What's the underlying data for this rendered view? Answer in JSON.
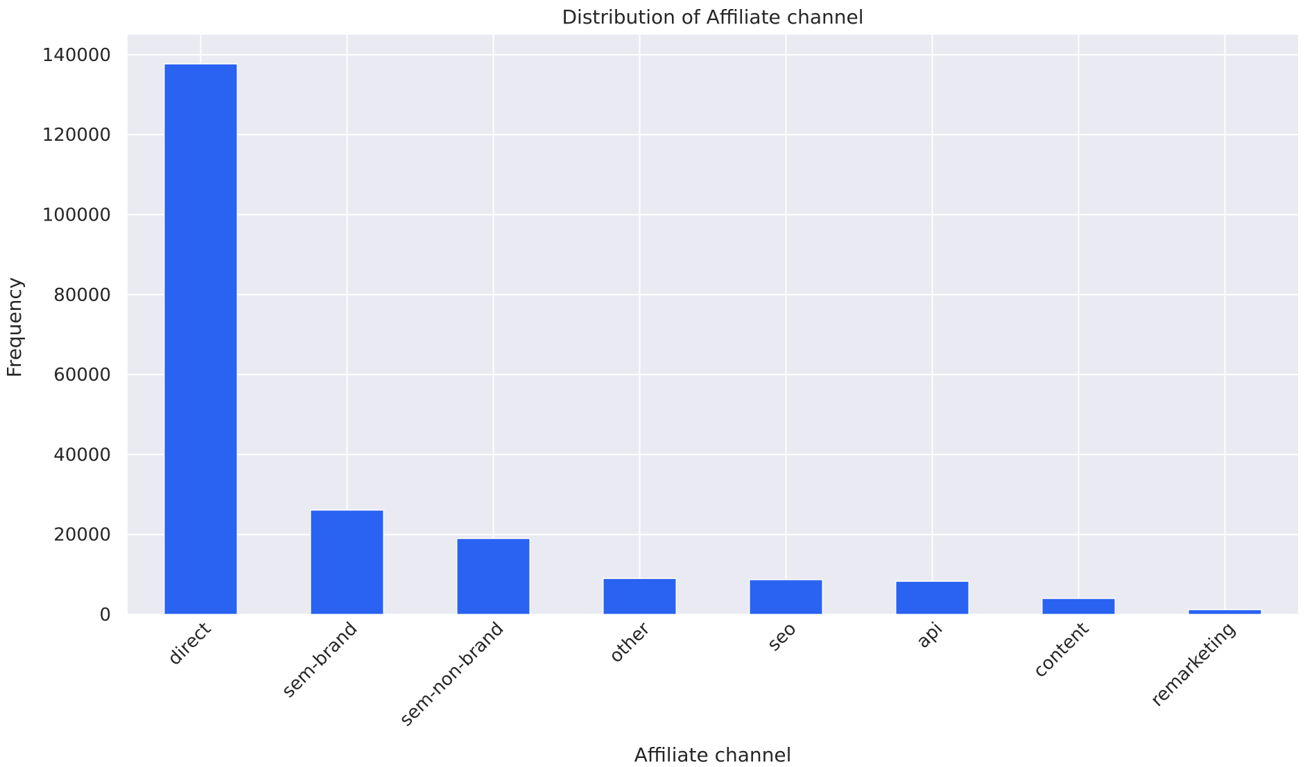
{
  "chart_data": {
    "type": "bar",
    "title": "Distribution of Affiliate channel",
    "xlabel": "Affiliate channel",
    "ylabel": "Frequency",
    "categories": [
      "direct",
      "sem-brand",
      "sem-non-brand",
      "other",
      "seo",
      "api",
      "content",
      "remarketing"
    ],
    "values": [
      137700,
      26100,
      19000,
      9000,
      8700,
      8300,
      4000,
      1200
    ],
    "ylim": [
      0,
      145000
    ],
    "yticks": [
      0,
      20000,
      40000,
      60000,
      80000,
      100000,
      120000,
      140000
    ],
    "grid": true,
    "bar_color": "#2a63f2",
    "background_color": "#eaeaf2",
    "grid_color": "#ffffff"
  }
}
